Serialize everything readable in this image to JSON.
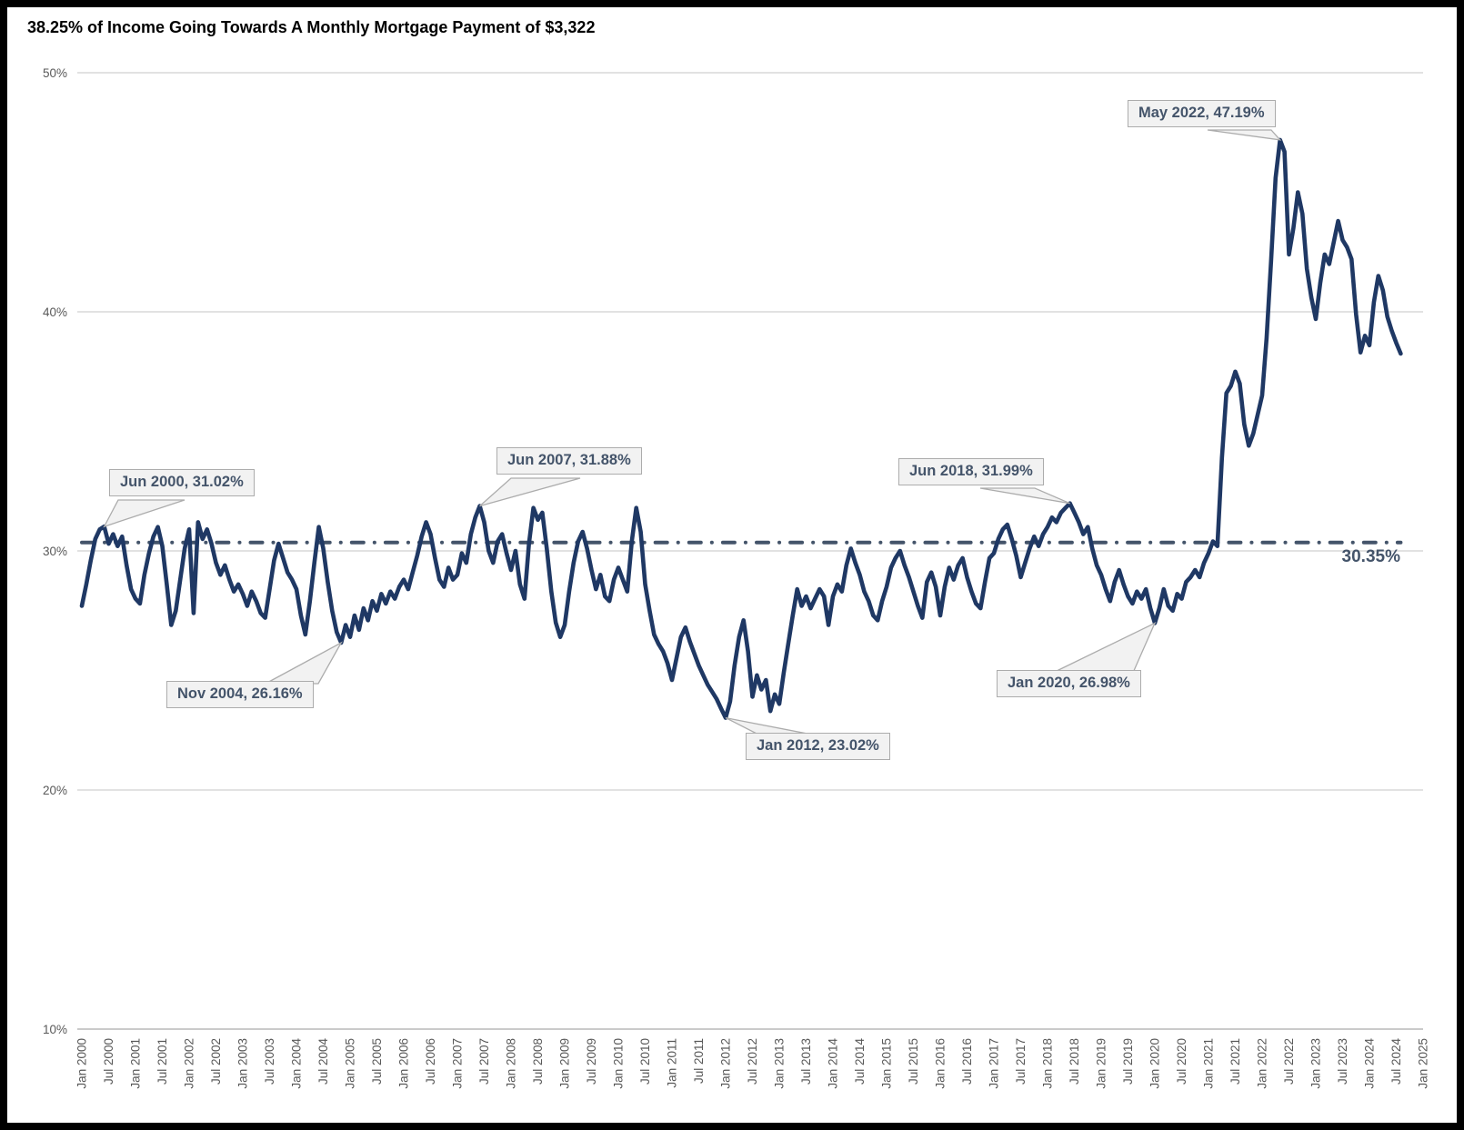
{
  "title": "38.25% of Income Going Towards A Monthly Mortgage Payment of $3,322",
  "colors": {
    "line": "#1F3864",
    "average_line": "#44546A",
    "annotation_text": "#44546A",
    "callout_fill": "#F2F2F2",
    "callout_border": "#ACACAC",
    "axis_text": "#595959",
    "gridline": "#D9D9D9",
    "axis_line": "#BFBFBF",
    "background": "#FFFFFF",
    "frame_border": "#000000"
  },
  "chart_data": {
    "type": "line",
    "title": "38.25% of Income Going Towards A Monthly Mortgage Payment of $3,322",
    "xlabel": "",
    "ylabel": "",
    "ylim": [
      10,
      50
    ],
    "grid": true,
    "legend": "none",
    "frequency": "monthly",
    "x_start": "Jan 2000",
    "x_end": "Aug 2024",
    "y_tick_labels": [
      {
        "label": "50%",
        "value": 50
      },
      {
        "label": "40%",
        "value": 40
      },
      {
        "label": "30%",
        "value": 30
      },
      {
        "label": "20%",
        "value": 20
      },
      {
        "label": "10%",
        "value": 10
      }
    ],
    "x_tick_labels": [
      "Jan 2000",
      "Jul 2000",
      "Jan 2001",
      "Jul 2001",
      "Jan 2002",
      "Jul 2002",
      "Jan 2003",
      "Jul 2003",
      "Jan 2004",
      "Jul 2004",
      "Jan 2005",
      "Jul 2005",
      "Jan 2006",
      "Jul 2006",
      "Jan 2007",
      "Jul 2007",
      "Jan 2008",
      "Jul 2008",
      "Jan 2009",
      "Jul 2009",
      "Jan 2010",
      "Jul 2010",
      "Jan 2011",
      "Jul 2011",
      "Jan 2012",
      "Jul 2012",
      "Jan 2013",
      "Jul 2013",
      "Jan 2014",
      "Jul 2014",
      "Jan 2015",
      "Jul 2015",
      "Jan 2016",
      "Jul 2016",
      "Jan 2017",
      "Jul 2017",
      "Jan 2018",
      "Jul 2018",
      "Jan 2019",
      "Jul 2019",
      "Jan 2020",
      "Jul 2020",
      "Jan 2021",
      "Jul 2021",
      "Jan 2022",
      "Jul 2022",
      "Jan 2023",
      "Jul 2023",
      "Jan 2024",
      "Jul 2024",
      "Jan 2025"
    ],
    "average": {
      "label": "30.35%",
      "value": 30.35
    },
    "annotations": [
      {
        "label": "Jun 2000, 31.02%",
        "month_index": 5,
        "value": 31.02
      },
      {
        "label": "Nov 2004, 26.16%",
        "month_index": 58,
        "value": 26.16
      },
      {
        "label": "Jun 2007, 31.88%",
        "month_index": 89,
        "value": 31.88
      },
      {
        "label": "Jan 2012, 23.02%",
        "month_index": 144,
        "value": 23.02
      },
      {
        "label": "Jun 2018, 31.99%",
        "month_index": 221,
        "value": 31.99
      },
      {
        "label": "Jan 2020, 26.98%",
        "month_index": 240,
        "value": 26.98
      },
      {
        "label": "May 2022, 47.19%",
        "month_index": 268,
        "value": 47.19
      }
    ],
    "values": [
      27.7,
      28.6,
      29.6,
      30.5,
      30.9,
      31.02,
      30.3,
      30.7,
      30.2,
      30.6,
      29.4,
      28.4,
      28.0,
      27.8,
      29.0,
      29.9,
      30.6,
      31.0,
      30.2,
      28.6,
      26.9,
      27.5,
      28.8,
      30.1,
      30.9,
      27.4,
      31.2,
      30.5,
      30.9,
      30.3,
      29.5,
      29.0,
      29.4,
      28.8,
      28.3,
      28.6,
      28.2,
      27.7,
      28.3,
      27.9,
      27.4,
      27.2,
      28.4,
      29.6,
      30.3,
      29.7,
      29.1,
      28.8,
      28.4,
      27.3,
      26.5,
      27.9,
      29.5,
      31.0,
      30.1,
      28.7,
      27.5,
      26.6,
      26.16,
      26.9,
      26.4,
      27.3,
      26.7,
      27.6,
      27.1,
      27.9,
      27.5,
      28.2,
      27.8,
      28.3,
      28.0,
      28.5,
      28.8,
      28.4,
      29.1,
      29.8,
      30.6,
      31.2,
      30.7,
      29.7,
      28.8,
      28.5,
      29.3,
      28.8,
      29.0,
      29.9,
      29.5,
      30.7,
      31.4,
      31.88,
      31.2,
      30.0,
      29.5,
      30.4,
      30.7,
      29.9,
      29.2,
      30.0,
      28.6,
      28.0,
      30.3,
      31.8,
      31.3,
      31.6,
      30.1,
      28.3,
      27.0,
      26.4,
      26.9,
      28.3,
      29.5,
      30.4,
      30.8,
      30.1,
      29.2,
      28.4,
      29.0,
      28.1,
      27.9,
      28.8,
      29.3,
      28.8,
      28.3,
      30.4,
      31.8,
      30.8,
      28.6,
      27.5,
      26.5,
      26.1,
      25.8,
      25.3,
      24.6,
      25.5,
      26.4,
      26.8,
      26.2,
      25.7,
      25.2,
      24.8,
      24.4,
      24.1,
      23.8,
      23.4,
      23.02,
      23.7,
      25.2,
      26.4,
      27.1,
      25.8,
      23.9,
      24.8,
      24.2,
      24.6,
      23.3,
      24.0,
      23.6,
      24.9,
      26.1,
      27.3,
      28.4,
      27.7,
      28.1,
      27.6,
      28.0,
      28.4,
      28.1,
      26.9,
      28.1,
      28.6,
      28.3,
      29.4,
      30.1,
      29.5,
      29.0,
      28.3,
      27.9,
      27.3,
      27.1,
      27.9,
      28.5,
      29.3,
      29.7,
      30.0,
      29.4,
      28.9,
      28.3,
      27.7,
      27.2,
      28.7,
      29.1,
      28.5,
      27.3,
      28.5,
      29.3,
      28.8,
      29.4,
      29.7,
      28.9,
      28.3,
      27.8,
      27.6,
      28.7,
      29.7,
      29.9,
      30.5,
      30.9,
      31.1,
      30.5,
      29.8,
      28.9,
      29.5,
      30.1,
      30.6,
      30.2,
      30.7,
      31.0,
      31.4,
      31.2,
      31.6,
      31.8,
      31.99,
      31.6,
      31.2,
      30.7,
      31.0,
      30.1,
      29.4,
      29.0,
      28.4,
      27.9,
      28.7,
      29.2,
      28.6,
      28.1,
      27.8,
      28.3,
      28.0,
      28.4,
      27.6,
      26.98,
      27.6,
      28.4,
      27.7,
      27.5,
      28.2,
      28.0,
      28.7,
      28.9,
      29.2,
      28.9,
      29.5,
      29.9,
      30.4,
      30.2,
      33.9,
      36.6,
      36.9,
      37.5,
      37.0,
      35.3,
      34.4,
      34.9,
      35.7,
      36.5,
      38.9,
      42.1,
      45.6,
      47.19,
      46.7,
      42.4,
      43.5,
      45.0,
      44.1,
      41.8,
      40.6,
      39.7,
      41.2,
      42.4,
      42.0,
      42.9,
      43.8,
      43.0,
      42.7,
      42.2,
      39.9,
      38.3,
      39.0,
      38.6,
      40.4,
      41.5,
      40.9,
      39.8,
      39.2,
      38.7,
      38.25
    ]
  }
}
